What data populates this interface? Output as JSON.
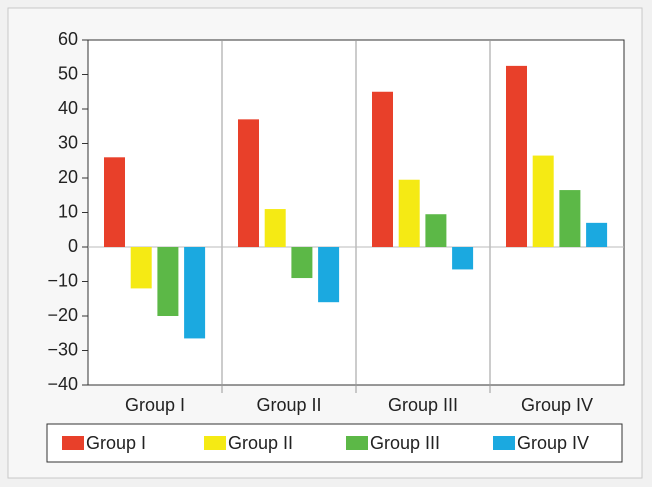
{
  "chart_data": {
    "type": "bar",
    "categories": [
      "Group I",
      "Group II",
      "Group III",
      "Group IV"
    ],
    "series": [
      {
        "name": "Group I",
        "color": "#e8402a",
        "values": [
          26,
          37,
          45,
          52.5
        ]
      },
      {
        "name": "Group II",
        "color": "#f5ea14",
        "values": [
          -12,
          11,
          19.5,
          26.5
        ]
      },
      {
        "name": "Group III",
        "color": "#5cb847",
        "values": [
          -20,
          -9,
          9.5,
          16.5
        ]
      },
      {
        "name": "Group IV",
        "color": "#1ba9e0",
        "values": [
          -26.5,
          -16,
          -6.5,
          7
        ]
      }
    ],
    "ylim": [
      -40,
      60
    ],
    "yticks": [
      {
        "value": -40,
        "label": "−40"
      },
      {
        "value": -30,
        "label": "−30"
      },
      {
        "value": -20,
        "label": "−20"
      },
      {
        "value": -10,
        "label": "−10"
      },
      0,
      10,
      20,
      30,
      40,
      50,
      60
    ],
    "legend": "bottom"
  }
}
